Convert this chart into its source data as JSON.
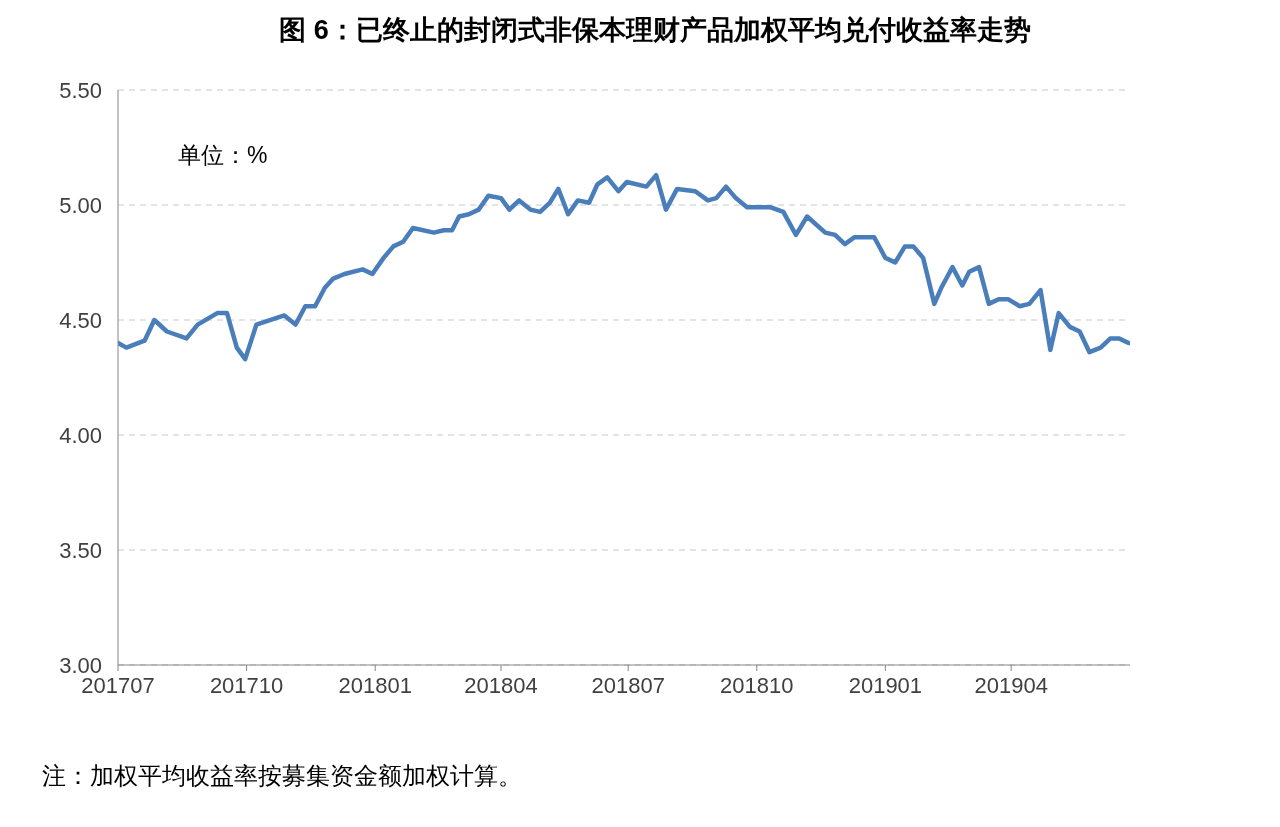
{
  "chart_data": {
    "type": "line",
    "title": "图 6：已终止的封闭式非保本理财产品加权平均兑付收益率走势",
    "annotations": [
      "单位：%",
      "注：加权平均收益率按募集资金额加权计算。"
    ],
    "x": [
      "2017-07-01",
      "2017-07-07",
      "2017-07-20",
      "2017-07-27",
      "2017-08-05",
      "2017-08-19",
      "2017-08-27",
      "2017-09-10",
      "2017-09-17",
      "2017-09-24",
      "2017-09-30",
      "2017-10-08",
      "2017-10-28",
      "2017-11-05",
      "2017-11-12",
      "2017-11-19",
      "2017-11-26",
      "2017-12-02",
      "2017-12-10",
      "2017-12-23",
      "2017-12-30",
      "2018-01-07",
      "2018-01-14",
      "2018-01-21",
      "2018-01-28",
      "2018-02-12",
      "2018-02-19",
      "2018-02-25",
      "2018-03-02",
      "2018-03-09",
      "2018-03-16",
      "2018-03-23",
      "2018-04-01",
      "2018-04-07",
      "2018-04-14",
      "2018-04-22",
      "2018-04-29",
      "2018-05-06",
      "2018-05-12",
      "2018-05-19",
      "2018-05-26",
      "2018-06-03",
      "2018-06-09",
      "2018-06-16",
      "2018-06-24",
      "2018-06-30",
      "2018-07-14",
      "2018-07-21",
      "2018-07-28",
      "2018-08-05",
      "2018-08-18",
      "2018-08-27",
      "2018-09-02",
      "2018-09-09",
      "2018-09-16",
      "2018-09-24",
      "2018-10-02",
      "2018-10-11",
      "2018-10-20",
      "2018-10-29",
      "2018-11-06",
      "2018-11-19",
      "2018-11-26",
      "2018-12-03",
      "2018-12-10",
      "2018-12-24",
      "2019-01-01",
      "2019-01-08",
      "2019-01-15",
      "2019-01-21",
      "2019-01-28",
      "2019-02-05",
      "2019-02-10",
      "2019-02-18",
      "2019-02-25",
      "2019-03-02",
      "2019-03-09",
      "2019-03-16",
      "2019-03-23",
      "2019-03-30",
      "2019-04-07",
      "2019-04-14",
      "2019-04-22",
      "2019-04-29",
      "2019-05-05",
      "2019-05-13",
      "2019-05-20",
      "2019-05-27",
      "2019-06-04",
      "2019-06-11",
      "2019-06-17",
      "2019-06-24"
    ],
    "series": [
      {
        "color": "#4a7ebb",
        "values": [
          4.4,
          4.38,
          4.41,
          4.5,
          4.45,
          4.42,
          4.48,
          4.53,
          4.53,
          4.38,
          4.33,
          4.48,
          4.52,
          4.48,
          4.56,
          4.56,
          4.64,
          4.68,
          4.7,
          4.72,
          4.7,
          4.77,
          4.82,
          4.84,
          4.9,
          4.88,
          4.89,
          4.89,
          4.95,
          4.96,
          4.98,
          5.04,
          5.03,
          4.98,
          5.02,
          4.98,
          4.97,
          5.01,
          5.07,
          4.96,
          5.02,
          5.01,
          5.09,
          5.12,
          5.06,
          5.1,
          5.08,
          5.13,
          4.98,
          5.07,
          5.06,
          5.02,
          5.03,
          5.08,
          5.03,
          4.99,
          4.99,
          4.99,
          4.97,
          4.87,
          4.95,
          4.88,
          4.87,
          4.83,
          4.86,
          4.86,
          4.77,
          4.75,
          4.82,
          4.82,
          4.77,
          4.57,
          4.64,
          4.73,
          4.65,
          4.71,
          4.73,
          4.57,
          4.59,
          4.59,
          4.56,
          4.57,
          4.63,
          4.37,
          4.53,
          4.47,
          4.45,
          4.36,
          4.38,
          4.42,
          4.42,
          4.4
        ]
      }
    ],
    "xlim": [
      "2017-07-01",
      "2019-06-25"
    ],
    "xticks": [
      {
        "value": "2017-07",
        "label": "201707"
      },
      {
        "value": "2017-10",
        "label": "201710"
      },
      {
        "value": "2018-01",
        "label": "201801"
      },
      {
        "value": "2018-04",
        "label": "201804"
      },
      {
        "value": "2018-07",
        "label": "201807"
      },
      {
        "value": "2018-10",
        "label": "201810"
      },
      {
        "value": "2019-01",
        "label": "201901"
      },
      {
        "value": "2019-04",
        "label": "201904"
      }
    ],
    "ylim": [
      3.0,
      5.5
    ],
    "yticks": [
      {
        "value": 3.0,
        "label": "3.00"
      },
      {
        "value": 3.5,
        "label": "3.50"
      },
      {
        "value": 4.0,
        "label": "4.00"
      },
      {
        "value": 4.5,
        "label": "4.50"
      },
      {
        "value": 5.0,
        "label": "5.00"
      },
      {
        "value": 5.5,
        "label": "5.50"
      }
    ],
    "grid": "y",
    "marker": "none",
    "line_style": "solid"
  }
}
